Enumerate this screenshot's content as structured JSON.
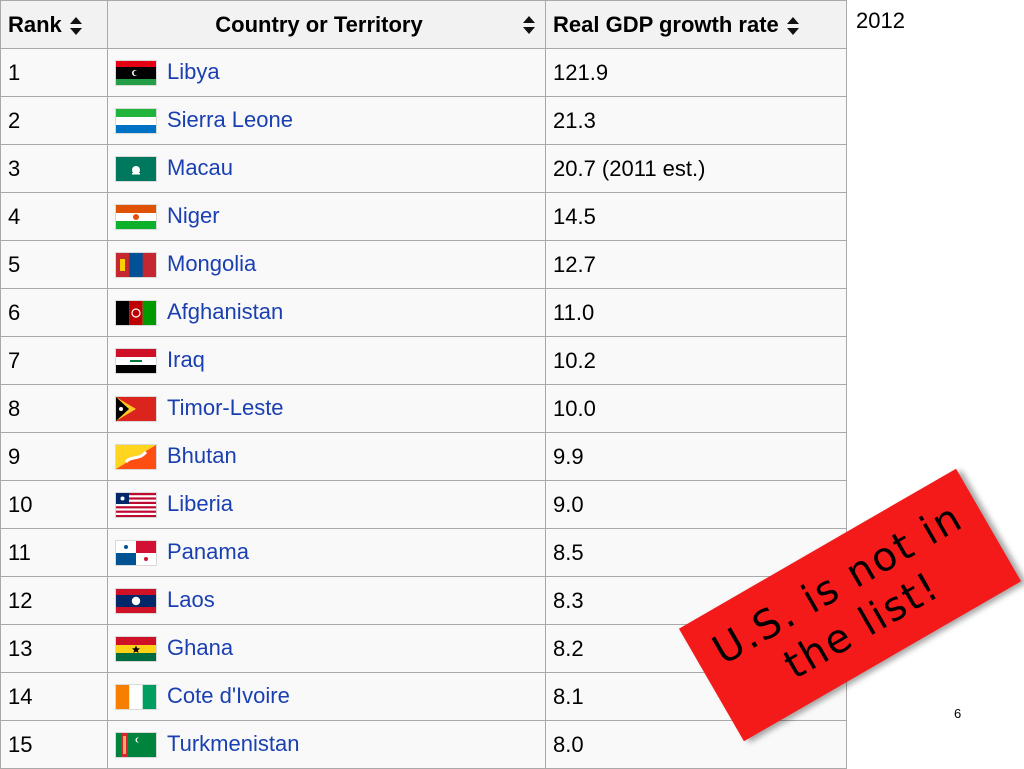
{
  "header": {
    "year": "2012",
    "page_number": "6"
  },
  "table": {
    "columns": [
      "Rank",
      "Country or Territory",
      "Real GDP growth rate"
    ],
    "rows": [
      {
        "rank": "1",
        "country": "Libya",
        "rate": "121.9",
        "flag": "libya-flag-icon"
      },
      {
        "rank": "2",
        "country": "Sierra Leone",
        "rate": "21.3",
        "flag": "sierra-leone-flag-icon"
      },
      {
        "rank": "3",
        "country": "Macau",
        "rate": "20.7 (2011 est.)",
        "flag": "macau-flag-icon"
      },
      {
        "rank": "4",
        "country": "Niger",
        "rate": "14.5",
        "flag": "niger-flag-icon"
      },
      {
        "rank": "5",
        "country": "Mongolia",
        "rate": "12.7",
        "flag": "mongolia-flag-icon"
      },
      {
        "rank": "6",
        "country": "Afghanistan",
        "rate": "11.0",
        "flag": "afghanistan-flag-icon"
      },
      {
        "rank": "7",
        "country": "Iraq",
        "rate": "10.2",
        "flag": "iraq-flag-icon"
      },
      {
        "rank": "8",
        "country": "Timor-Leste",
        "rate": "10.0",
        "flag": "timor-leste-flag-icon"
      },
      {
        "rank": "9",
        "country": "Bhutan",
        "rate": "9.9",
        "flag": "bhutan-flag-icon"
      },
      {
        "rank": "10",
        "country": "Liberia",
        "rate": "9.0",
        "flag": "liberia-flag-icon"
      },
      {
        "rank": "11",
        "country": "Panama",
        "rate": "8.5",
        "flag": "panama-flag-icon"
      },
      {
        "rank": "12",
        "country": "Laos",
        "rate": "8.3",
        "flag": "laos-flag-icon"
      },
      {
        "rank": "13",
        "country": "Ghana",
        "rate": "8.2",
        "flag": "ghana-flag-icon"
      },
      {
        "rank": "14",
        "country": "Cote d'Ivoire",
        "rate": "8.1",
        "flag": "cote-divoire-flag-icon"
      },
      {
        "rank": "15",
        "country": "Turkmenistan",
        "rate": "8.0",
        "flag": "turkmenistan-flag-icon"
      }
    ]
  },
  "stamp": {
    "line1": "U.S. is not in",
    "line2": "the list!"
  }
}
